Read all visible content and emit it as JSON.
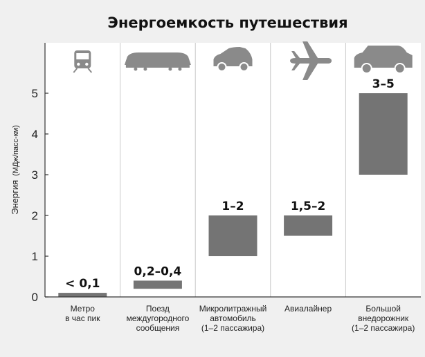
{
  "chart_data": {
    "type": "bar",
    "title": "Энергоемкость путешествия",
    "ylabel": "Энергия",
    "ylabel_unit": "(МДж/пасс-км)",
    "ylim": [
      0,
      5.5
    ],
    "yticks": [
      0,
      1,
      2,
      3,
      4,
      5
    ],
    "grid": "vertical",
    "colors": {
      "bar": "#747474",
      "background": "#f0f0f0",
      "plot_background": "#ffffff",
      "grid": "#c8c8c8",
      "icon": "#8a8a8a"
    },
    "categories": [
      {
        "lines": [
          "Метро",
          "в час пик"
        ],
        "icon": "metro-train-icon",
        "low": 0,
        "high": 0.1,
        "label": "< 0,1"
      },
      {
        "lines": [
          "Поезд",
          "междугородного",
          "сообщения"
        ],
        "icon": "intercity-train-icon",
        "low": 0.2,
        "high": 0.4,
        "label": "0,2–0,4"
      },
      {
        "lines": [
          "Микролитражный",
          "автомобиль",
          "(1–2 пассажира)"
        ],
        "icon": "compact-car-icon",
        "low": 1,
        "high": 2,
        "label": "1–2"
      },
      {
        "lines": [
          "Авиалайнер"
        ],
        "icon": "airplane-icon",
        "low": 1.5,
        "high": 2,
        "label": "1,5–2"
      },
      {
        "lines": [
          "Большой",
          "внедорожник",
          "(1–2 пассажира)"
        ],
        "icon": "suv-icon",
        "low": 3,
        "high": 5,
        "label": "3–5"
      }
    ]
  }
}
